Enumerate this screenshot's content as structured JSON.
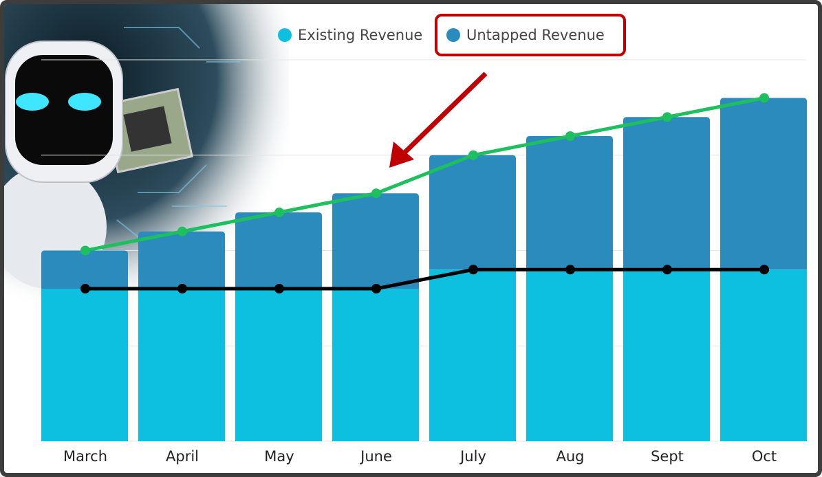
{
  "chart_data": {
    "type": "bar",
    "stacked": true,
    "categories": [
      "March",
      "April",
      "May",
      "June",
      "July",
      "Aug",
      "Sept",
      "Oct"
    ],
    "series": [
      {
        "name": "Existing Revenue",
        "values": [
          80,
          80,
          80,
          80,
          90,
          90,
          90,
          90
        ],
        "color": "#0dc0e0"
      },
      {
        "name": "Untapped Revenue",
        "values": [
          20,
          30,
          40,
          50,
          60,
          70,
          80,
          90
        ],
        "color": "#2b8bbd"
      }
    ],
    "lines": [
      {
        "role": "total",
        "values": [
          100,
          110,
          120,
          130,
          150,
          160,
          170,
          180
        ],
        "color": "#1dbf5e"
      },
      {
        "role": "existing",
        "values": [
          80,
          80,
          80,
          80,
          90,
          90,
          90,
          90
        ],
        "color": "#000000"
      }
    ],
    "ylim": [
      0,
      200
    ],
    "grid": true,
    "legend_position": "top",
    "highlight": {
      "legend_item": "Untapped Revenue",
      "color": "#c00000"
    }
  }
}
